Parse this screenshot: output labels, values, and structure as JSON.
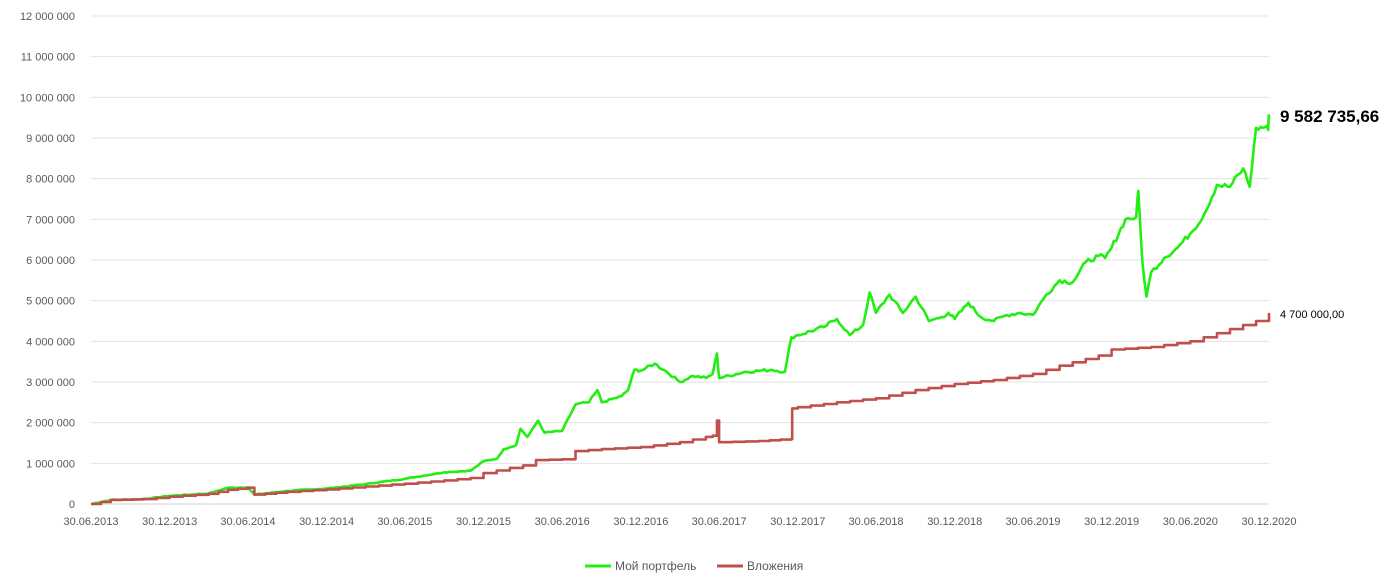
{
  "chart_data": {
    "type": "line",
    "ylim": [
      0,
      12000000
    ],
    "yticks": [
      "0",
      "1 000 000",
      "2 000 000",
      "3 000 000",
      "4 000 000",
      "5 000 000",
      "6 000 000",
      "7 000 000",
      "8 000 000",
      "9 000 000",
      "10 000 000",
      "11 000 000",
      "12 000 000"
    ],
    "xticks": [
      "30.06.2013",
      "30.12.2013",
      "30.06.2014",
      "30.12.2014",
      "30.06.2015",
      "30.12.2015",
      "30.06.2016",
      "30.12.2016",
      "30.06.2017",
      "30.12.2017",
      "30.06.2018",
      "30.12.2018",
      "30.06.2019",
      "30.12.2019",
      "30.06.2020",
      "30.12.2020"
    ],
    "grid": true,
    "legend": "bottom",
    "series": [
      {
        "name": "Мой портфель",
        "color": "#22ee11",
        "end_label": "9 582 735,66",
        "points": [
          [
            "30.06.2013",
            0
          ],
          [
            "15.08.2013",
            100000
          ],
          [
            "30.10.2013",
            120000
          ],
          [
            "30.12.2013",
            200000
          ],
          [
            "31.03.2014",
            260000
          ],
          [
            "15.05.2014",
            400000
          ],
          [
            "30.06.2014",
            410000
          ],
          [
            "15.07.2014",
            230000
          ],
          [
            "30.09.2014",
            320000
          ],
          [
            "30.12.2014",
            380000
          ],
          [
            "31.03.2015",
            490000
          ],
          [
            "30.06.2015",
            620000
          ],
          [
            "30.09.2015",
            780000
          ],
          [
            "30.11.2015",
            820000
          ],
          [
            "30.12.2015",
            1050000
          ],
          [
            "31.01.2016",
            1120000
          ],
          [
            "15.02.2016",
            1350000
          ],
          [
            "15.03.2016",
            1450000
          ],
          [
            "25.03.2016",
            1850000
          ],
          [
            "10.04.2016",
            1650000
          ],
          [
            "05.05.2016",
            2050000
          ],
          [
            "20.05.2016",
            1750000
          ],
          [
            "30.06.2016",
            1800000
          ],
          [
            "31.07.2016",
            2450000
          ],
          [
            "31.08.2016",
            2500000
          ],
          [
            "20.09.2016",
            2800000
          ],
          [
            "30.09.2016",
            2500000
          ],
          [
            "15.11.2016",
            2650000
          ],
          [
            "30.11.2016",
            2800000
          ],
          [
            "15.12.2016",
            3300000
          ],
          [
            "30.12.2016",
            3280000
          ],
          [
            "31.01.2017",
            3450000
          ],
          [
            "28.02.2017",
            3250000
          ],
          [
            "31.03.2017",
            3000000
          ],
          [
            "30.04.2017",
            3150000
          ],
          [
            "31.05.2017",
            3100000
          ],
          [
            "15.06.2017",
            3200000
          ],
          [
            "25.06.2017",
            3700000
          ],
          [
            "30.06.2017",
            3100000
          ],
          [
            "31.08.2017",
            3250000
          ],
          [
            "31.10.2017",
            3300000
          ],
          [
            "30.11.2017",
            3250000
          ],
          [
            "15.12.2017",
            4100000
          ],
          [
            "30.12.2017",
            4150000
          ],
          [
            "28.02.2018",
            4350000
          ],
          [
            "31.03.2018",
            4550000
          ],
          [
            "30.04.2018",
            4150000
          ],
          [
            "31.05.2018",
            4400000
          ],
          [
            "15.06.2018",
            5200000
          ],
          [
            "30.06.2018",
            4700000
          ],
          [
            "31.07.2018",
            5150000
          ],
          [
            "31.08.2018",
            4700000
          ],
          [
            "30.09.2018",
            5100000
          ],
          [
            "31.10.2018",
            4500000
          ],
          [
            "30.11.2018",
            4600000
          ],
          [
            "15.12.2018",
            4700000
          ],
          [
            "30.12.2018",
            4550000
          ],
          [
            "31.01.2019",
            4950000
          ],
          [
            "28.02.2019",
            4600000
          ],
          [
            "31.03.2019",
            4500000
          ],
          [
            "30.04.2019",
            4650000
          ],
          [
            "31.05.2019",
            4700000
          ],
          [
            "30.06.2019",
            4650000
          ],
          [
            "31.07.2019",
            5150000
          ],
          [
            "31.08.2019",
            5500000
          ],
          [
            "30.09.2019",
            5450000
          ],
          [
            "31.10.2019",
            5950000
          ],
          [
            "30.11.2019",
            6100000
          ],
          [
            "15.12.2019",
            6050000
          ],
          [
            "30.12.2019",
            6300000
          ],
          [
            "31.01.2020",
            7000000
          ],
          [
            "25.02.2020",
            7050000
          ],
          [
            "01.03.2020",
            7700000
          ],
          [
            "10.03.2020",
            6000000
          ],
          [
            "20.03.2020",
            5100000
          ],
          [
            "31.03.2020",
            5700000
          ],
          [
            "30.04.2020",
            6050000
          ],
          [
            "31.05.2020",
            6300000
          ],
          [
            "30.06.2020",
            6650000
          ],
          [
            "31.07.2020",
            7100000
          ],
          [
            "31.08.2020",
            7850000
          ],
          [
            "30.09.2020",
            7800000
          ],
          [
            "31.10.2020",
            8250000
          ],
          [
            "15.11.2020",
            7800000
          ],
          [
            "30.11.2020",
            9250000
          ],
          [
            "15.12.2020",
            9250000
          ],
          [
            "25.12.2020",
            9300000
          ],
          [
            "28.12.2020",
            9200000
          ],
          [
            "30.12.2020",
            9582735.66
          ]
        ]
      },
      {
        "name": "Вложения",
        "color": "#c0504d",
        "end_label": "4 700 000,00",
        "points": [
          [
            "30.06.2013",
            0
          ],
          [
            "15.08.2013",
            100000
          ],
          [
            "30.10.2013",
            120000
          ],
          [
            "30.12.2013",
            180000
          ],
          [
            "31.03.2014",
            250000
          ],
          [
            "15.05.2014",
            350000
          ],
          [
            "30.06.2014",
            400000
          ],
          [
            "15.07.2014",
            230000
          ],
          [
            "30.09.2014",
            300000
          ],
          [
            "30.12.2014",
            360000
          ],
          [
            "31.03.2015",
            430000
          ],
          [
            "30.06.2015",
            500000
          ],
          [
            "30.09.2015",
            580000
          ],
          [
            "30.11.2015",
            640000
          ],
          [
            "30.12.2015",
            760000
          ],
          [
            "31.03.2016",
            950000
          ],
          [
            "30.04.2016",
            1080000
          ],
          [
            "30.06.2016",
            1100000
          ],
          [
            "31.07.2016",
            1300000
          ],
          [
            "30.09.2016",
            1350000
          ],
          [
            "30.12.2016",
            1400000
          ],
          [
            "31.03.2017",
            1520000
          ],
          [
            "30.05.2017",
            1650000
          ],
          [
            "15.06.2017",
            1680000
          ],
          [
            "25.06.2017",
            2050000
          ],
          [
            "30.06.2017",
            1520000
          ],
          [
            "30.09.2017",
            1550000
          ],
          [
            "15.12.2017",
            1600000
          ],
          [
            "17.12.2017",
            2350000
          ],
          [
            "30.12.2017",
            2380000
          ],
          [
            "31.03.2018",
            2500000
          ],
          [
            "30.06.2018",
            2600000
          ],
          [
            "30.09.2018",
            2800000
          ],
          [
            "30.12.2018",
            2950000
          ],
          [
            "31.03.2019",
            3050000
          ],
          [
            "30.06.2019",
            3200000
          ],
          [
            "31.08.2019",
            3400000
          ],
          [
            "30.11.2019",
            3650000
          ],
          [
            "30.12.2019",
            3800000
          ],
          [
            "31.03.2020",
            3860000
          ],
          [
            "30.06.2020",
            4000000
          ],
          [
            "31.08.2020",
            4200000
          ],
          [
            "30.11.2020",
            4500000
          ],
          [
            "30.12.2020",
            4700000
          ]
        ]
      }
    ]
  }
}
